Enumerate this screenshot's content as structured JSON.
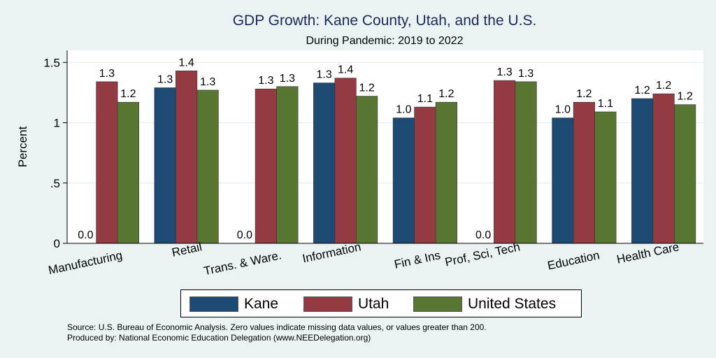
{
  "chart_data": {
    "type": "bar",
    "title": "GDP Growth: Kane County, Utah, and the U.S.",
    "subtitle": "During Pandemic: 2019 to 2022",
    "ylabel": "Percent",
    "xlabel": "",
    "ylim": [
      0,
      1.6
    ],
    "yticks": [
      0,
      0.5,
      1,
      1.5
    ],
    "ytick_labels": [
      "0",
      ".5",
      "1",
      "1.5"
    ],
    "grid": true,
    "legend_position": "bottom",
    "categories": [
      "Manufacturing",
      "Retail",
      "Trans. & Ware.",
      "Information",
      "Fin & Ins",
      "Prof, Sci, Tech",
      "Education",
      "Health Care"
    ],
    "series": [
      {
        "name": "Kane",
        "color": "#1c4a72",
        "values": [
          0,
          1.29,
          0,
          1.33,
          1.04,
          0,
          1.04,
          1.2
        ],
        "labels": [
          "0.0",
          "1.3",
          "0.0",
          "1.3",
          "1.0",
          "0.0",
          "1.0",
          "1.2"
        ]
      },
      {
        "name": "Utah",
        "color": "#933a42",
        "values": [
          1.34,
          1.43,
          1.28,
          1.37,
          1.13,
          1.35,
          1.17,
          1.24
        ],
        "labels": [
          "1.3",
          "1.4",
          "1.3",
          "1.4",
          "1.1",
          "1.3",
          "1.2",
          "1.2"
        ]
      },
      {
        "name": "United States",
        "color": "#597532",
        "values": [
          1.17,
          1.27,
          1.3,
          1.22,
          1.17,
          1.34,
          1.09,
          1.15
        ],
        "labels": [
          "1.2",
          "1.3",
          "1.3",
          "1.2",
          "1.2",
          "1.3",
          "1.1",
          "1.2"
        ]
      }
    ],
    "footnote": [
      "Source: U.S. Bureau of Economic Analysis. Zero values indicate missing data values, or values greater than 200.",
      "Produced by: National Economic Education Delegation (www.NEEDelegation.org)"
    ]
  }
}
